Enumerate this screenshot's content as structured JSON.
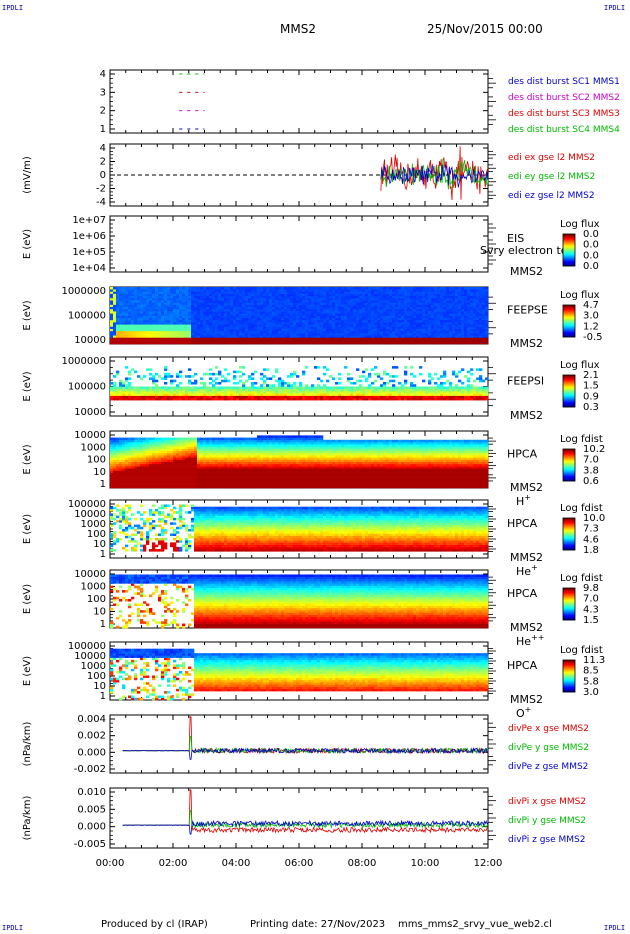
{
  "header": {
    "corner_label": "IPDLI",
    "mission": "MMS2",
    "date": "25/Nov/2015 00:00"
  },
  "footer": {
    "produced_by": "Produced by cl (IRAP)",
    "printing_date": "Printing date: 27/Nov/2023",
    "script": "mms_mms2_srvy_vue_web2.cl"
  },
  "colors": {
    "red": "#dd0000",
    "green": "#00bb00",
    "blue": "#0000cc",
    "magenta": "#cc00cc"
  },
  "chart_data": {
    "type": "panel-stack",
    "time_axis": {
      "ticks": [
        "00:00",
        "02:00",
        "04:00",
        "06:00",
        "08:00",
        "10:00",
        "12:00"
      ],
      "range_hours": [
        0,
        12
      ]
    },
    "panels": [
      {
        "id": "burst",
        "type": "line",
        "yticks": [
          "4",
          "3",
          "2",
          "1"
        ],
        "ylabel": "",
        "legend": [
          {
            "text": "des dist burst SC1 MMS1",
            "color": "#0000cc"
          },
          {
            "text": "des dist burst SC2 MMS2",
            "color": "#cc00cc"
          },
          {
            "text": "des dist burst SC3 MMS3",
            "color": "#dd0000"
          },
          {
            "text": "des dist burst SC4 MMS4",
            "color": "#00bb00"
          }
        ],
        "segments": [
          {
            "level": 4,
            "start": 2.2,
            "end": 3.0,
            "color": "#00bb00"
          },
          {
            "level": 3,
            "start": 2.2,
            "end": 3.0,
            "color": "#dd0000"
          },
          {
            "level": 2,
            "start": 2.2,
            "end": 3.0,
            "color": "#cc00cc"
          },
          {
            "level": 1,
            "start": 2.2,
            "end": 3.0,
            "color": "#0000cc"
          }
        ]
      },
      {
        "id": "efield",
        "type": "line",
        "ylabel": "(mV/m)",
        "yticks": [
          "4",
          "2",
          "0",
          "-2",
          "-4"
        ],
        "ylim": [
          -5,
          5
        ],
        "legend": [
          {
            "text": "edi ex gse l2 MMS2",
            "color": "#dd0000"
          },
          {
            "text": "edi ey gse l2 MMS2",
            "color": "#00bb00"
          },
          {
            "text": "edi ez gse l2 MMS2",
            "color": "#0000cc"
          }
        ],
        "data_start_hours": 8.6,
        "amplitude": 3.5
      },
      {
        "id": "eis",
        "type": "heatmap",
        "ylabel": "E (eV)",
        "yticks": [
          "1e+07",
          "1e+06",
          "1e+05",
          "1e+04"
        ],
        "instrument": "EIS",
        "sc": "MMS2",
        "overlay_text": "Svry electron to",
        "cbar_title": "Log flux",
        "cbar_ticks": [
          "0.0",
          "0.0",
          "0.0",
          "0.0"
        ]
      },
      {
        "id": "feepse",
        "type": "heatmap",
        "ylabel": "E (eV)",
        "yticks": [
          "1000000",
          "100000",
          "10000"
        ],
        "instrument": "FEEPSE",
        "sc": "MMS2",
        "cbar_title": "Log flux",
        "cbar_ticks": [
          "4.7",
          "3.0",
          "1.2",
          "-0.5"
        ]
      },
      {
        "id": "feepsi",
        "type": "heatmap",
        "ylabel": "E (eV)",
        "yticks": [
          "1000000",
          "100000",
          "10000"
        ],
        "instrument": "FEEPSI",
        "sc": "MMS2",
        "cbar_title": "Log flux",
        "cbar_ticks": [
          "2.1",
          "1.5",
          "0.9",
          "0.3"
        ]
      },
      {
        "id": "hpca_h",
        "type": "heatmap",
        "ylabel": "E (eV)",
        "yticks": [
          "10000",
          "1000",
          "100",
          "10",
          "1"
        ],
        "instrument": "HPCA",
        "sc": "MMS2",
        "species": "H",
        "species_sup": "+",
        "cbar_title": "Log fdist",
        "cbar_ticks": [
          "10.2",
          "7.0",
          "3.8",
          "0.6"
        ]
      },
      {
        "id": "hpca_he",
        "type": "heatmap",
        "ylabel": "E (eV)",
        "yticks": [
          "100000",
          "10000",
          "1000",
          "100",
          "10",
          "1"
        ],
        "instrument": "HPCA",
        "sc": "MMS2",
        "species": "He",
        "species_sup": "+",
        "cbar_title": "Log fdist",
        "cbar_ticks": [
          "10.0",
          "7.3",
          "4.6",
          "1.8"
        ]
      },
      {
        "id": "hpca_hepp",
        "type": "heatmap",
        "ylabel": "E (eV)",
        "yticks": [
          "10000",
          "1000",
          "100",
          "10",
          "1"
        ],
        "instrument": "HPCA",
        "sc": "MMS2",
        "species": "He",
        "species_sup": "++",
        "cbar_title": "Log fdist",
        "cbar_ticks": [
          "9.8",
          "7.0",
          "4.3",
          "1.5"
        ]
      },
      {
        "id": "hpca_o",
        "type": "heatmap",
        "ylabel": "E (eV)",
        "yticks": [
          "100000",
          "10000",
          "1000",
          "100",
          "10",
          "1"
        ],
        "instrument": "HPCA",
        "sc": "MMS2",
        "species": "O",
        "species_sup": "+",
        "cbar_title": "Log fdist",
        "cbar_ticks": [
          "11.3",
          "8.5",
          "5.8",
          "3.0"
        ]
      },
      {
        "id": "divpe",
        "type": "line",
        "ylabel": "(nPa/km)",
        "yticks": [
          "0.004",
          "0.002",
          "0.000",
          "-0.002"
        ],
        "ylim": [
          -0.0025,
          0.004
        ],
        "legend": [
          {
            "text": "divPe x gse MMS2",
            "color": "#dd0000"
          },
          {
            "text": "divPe y gse MMS2",
            "color": "#00bb00"
          },
          {
            "text": "divPe z gse MMS2",
            "color": "#0000cc"
          }
        ],
        "spike_hours": 2.55
      },
      {
        "id": "divpi",
        "type": "line",
        "ylabel": "(nPa/km)",
        "yticks": [
          "0.010",
          "0.005",
          "0.000",
          "-0.005"
        ],
        "ylim": [
          -0.008,
          0.013
        ],
        "legend": [
          {
            "text": "divPi x gse MMS2",
            "color": "#dd0000"
          },
          {
            "text": "divPi y gse MMS2",
            "color": "#00bb00"
          },
          {
            "text": "divPi z gse MMS2",
            "color": "#0000cc"
          }
        ],
        "spike_hours": 2.55
      }
    ]
  }
}
